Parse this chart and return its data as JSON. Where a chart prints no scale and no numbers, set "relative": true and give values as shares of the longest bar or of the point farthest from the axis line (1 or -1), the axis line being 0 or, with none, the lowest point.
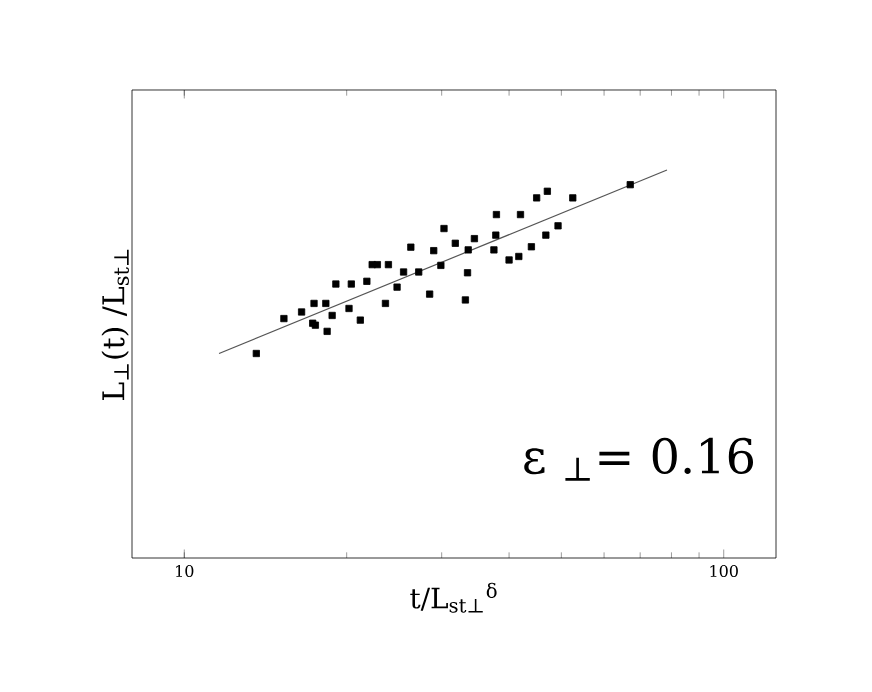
{
  "chart_data": {
    "type": "scatter",
    "relative": true,
    "log": "x",
    "xlim": [
      8,
      125
    ],
    "xticks": [
      10,
      100
    ],
    "tick_labels": "x",
    "grid": false,
    "xlabel": "t/L$_{st⊥}$$^{δ}$",
    "ylabel": "L$_{⊥}$(t) /L$_{st⊥}$",
    "annotations": [
      "ε $_{⊥}$= 0.16"
    ],
    "series": [
      {
        "marker": "square",
        "color": "#000000",
        "x": [
          13.6,
          15.3,
          16.5,
          17.4,
          17.3,
          17.5,
          18.3,
          18.4,
          18.8,
          19.1,
          20.2,
          20.4,
          21.2,
          21.8,
          22.3,
          22.8,
          23.6,
          23.9,
          24.8,
          25.5,
          26.3,
          27.2,
          28.5,
          29.0,
          29.9,
          30.3,
          31.8,
          33.2,
          33.5,
          33.6,
          34.5,
          37.5,
          37.8,
          37.9,
          40.0,
          41.7,
          42.0,
          44.0,
          45.0,
          46.8,
          47.1,
          49.3,
          52.5,
          67.1
        ],
        "values": [
          0.527,
          0.617,
          0.634,
          0.656,
          0.605,
          0.6,
          0.656,
          0.584,
          0.625,
          0.706,
          0.643,
          0.706,
          0.613,
          0.713,
          0.756,
          0.756,
          0.656,
          0.756,
          0.698,
          0.737,
          0.801,
          0.737,
          0.68,
          0.792,
          0.754,
          0.849,
          0.811,
          0.665,
          0.735,
          0.794,
          0.823,
          0.794,
          0.832,
          0.885,
          0.768,
          0.777,
          0.885,
          0.802,
          0.928,
          0.832,
          0.945,
          0.856,
          0.928,
          0.962
        ]
      },
      {
        "type": "line",
        "color": "#555555",
        "x": [
          11.6,
          78.5
        ],
        "values": [
          0.527,
          1.0
        ]
      }
    ]
  }
}
